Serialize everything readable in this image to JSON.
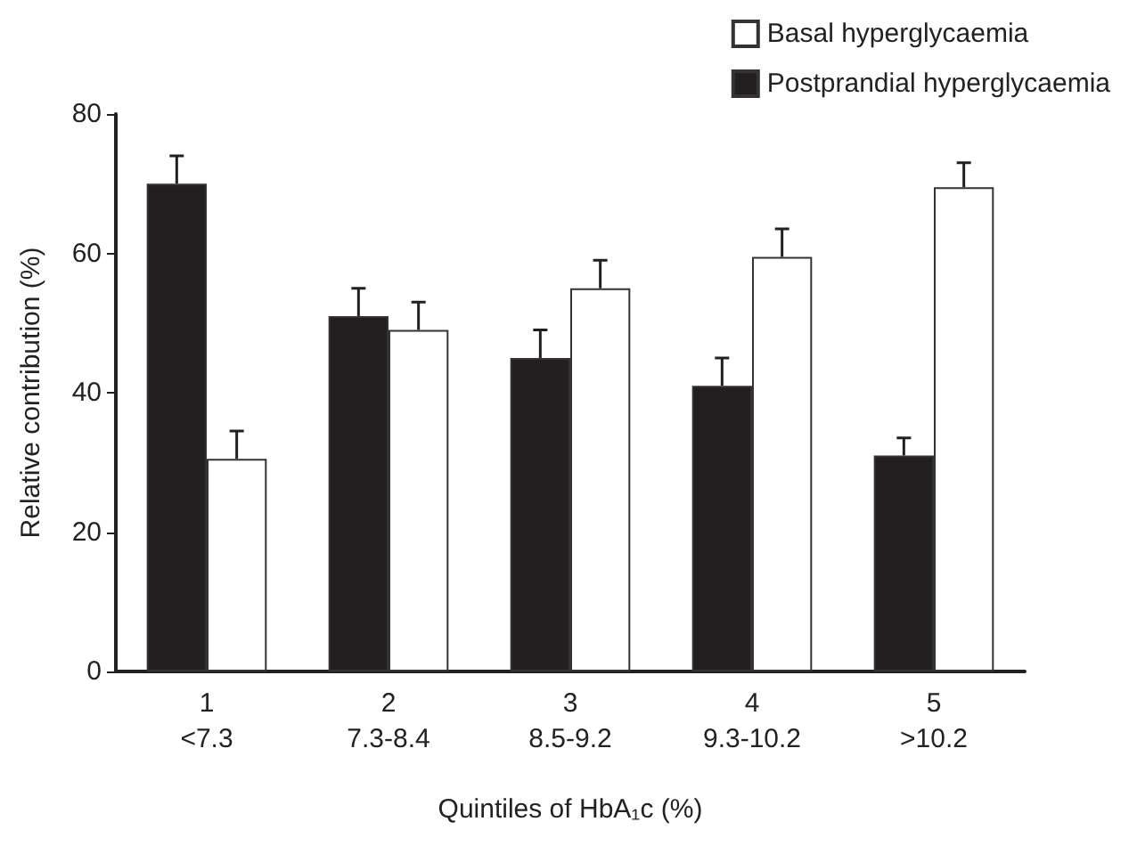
{
  "chart_data": {
    "type": "bar",
    "xlabel": "Quintiles of HbA₁c (%)",
    "ylabel": "Relative contribution (%)",
    "categories": [
      "1\n<7.3",
      "2\n7.3-8.4",
      "3\n8.5-9.2",
      "4\n9.3-10.2",
      "5\n>10.2"
    ],
    "series": [
      {
        "name": "Postprandial hyperglycaemia",
        "color": "#231f20",
        "values": [
          70,
          51,
          45,
          41,
          31
        ],
        "errors": [
          [
            70,
            74
          ],
          [
            51,
            55
          ],
          [
            45,
            49
          ],
          [
            41,
            45
          ],
          [
            31,
            33.5
          ]
        ]
      },
      {
        "name": "Basal hyperglycaemia",
        "color": "#ffffff",
        "values": [
          30.5,
          49,
          55,
          59.5,
          69.5
        ],
        "errors": [
          [
            30.5,
            34.5
          ],
          [
            49,
            53
          ],
          [
            55,
            59
          ],
          [
            59.5,
            63.5
          ],
          [
            69.5,
            73
          ]
        ]
      }
    ],
    "ylim": [
      0,
      80
    ],
    "yticks": [
      0,
      20,
      40,
      60,
      80
    ],
    "grid": false,
    "legend": "top right"
  }
}
